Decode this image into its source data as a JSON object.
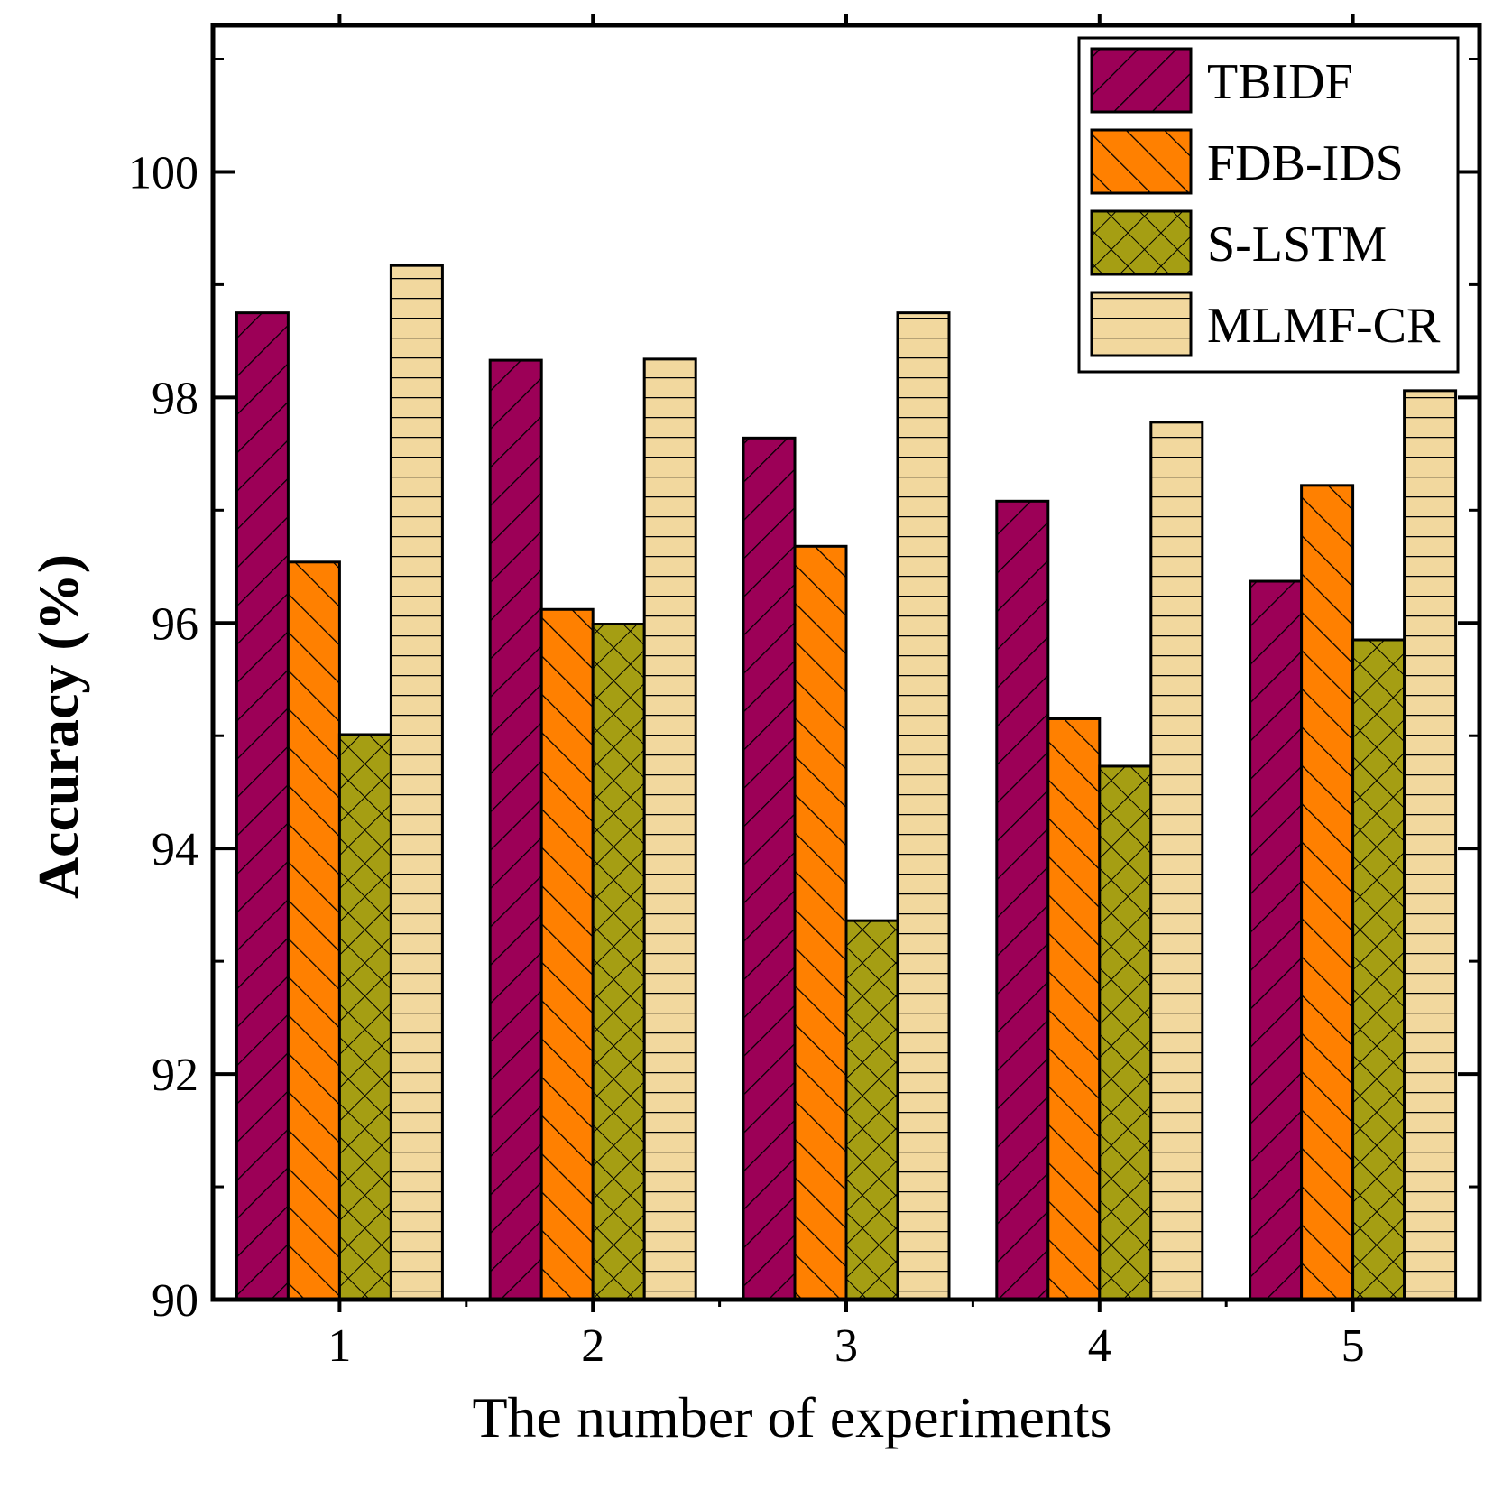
{
  "chart_data": {
    "type": "bar",
    "title": "",
    "xlabel": "The number of experiments",
    "ylabel": "Accuracy (%)",
    "categories": [
      "1",
      "2",
      "3",
      "4",
      "5"
    ],
    "ylim": [
      90,
      101.3
    ],
    "yticks": [
      90,
      92,
      94,
      96,
      98,
      100
    ],
    "ytick_labels": [
      "90",
      "92",
      "94",
      "96",
      "98",
      "100"
    ],
    "grid": false,
    "legend_position": "top-right",
    "series": [
      {
        "name": "TBIDF",
        "values": [
          98.75,
          98.33,
          97.64,
          97.08,
          96.37
        ],
        "color": "#9c0057",
        "hatch": "diagonal-up"
      },
      {
        "name": "FDB-IDS",
        "values": [
          96.54,
          96.12,
          96.68,
          95.15,
          97.22
        ],
        "color": "#ff8000",
        "hatch": "diagonal-down"
      },
      {
        "name": "S-LSTM",
        "values": [
          95.01,
          95.99,
          93.36,
          94.73,
          95.85
        ],
        "color": "#a59e13",
        "hatch": "cross"
      },
      {
        "name": "MLMF-CR",
        "values": [
          99.17,
          98.34,
          98.75,
          97.78,
          98.06
        ],
        "color": "#f2d89e",
        "hatch": "horizontal"
      }
    ]
  }
}
